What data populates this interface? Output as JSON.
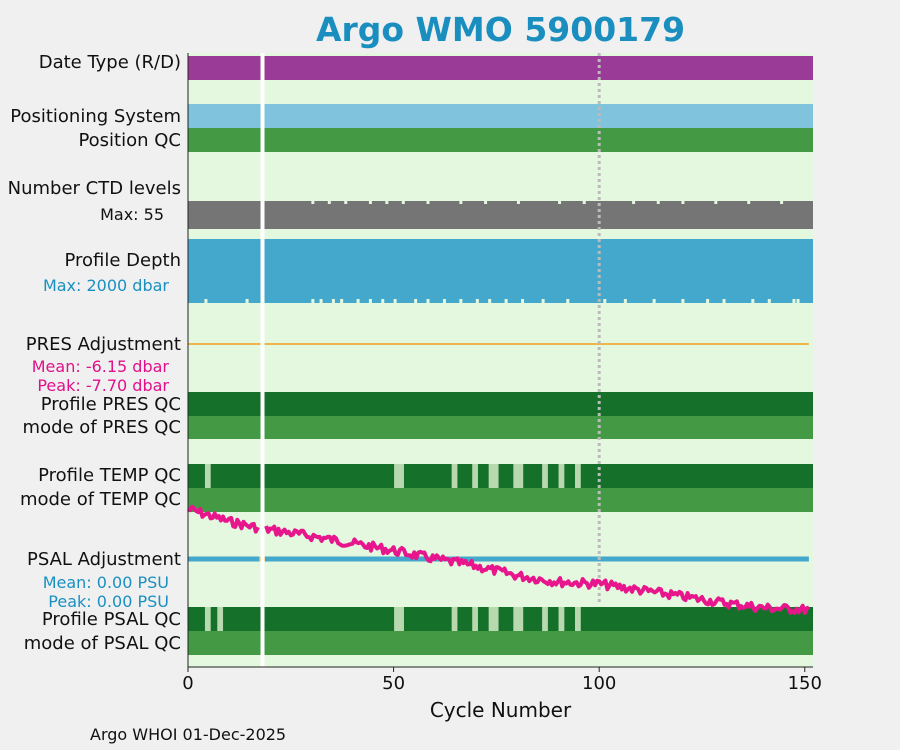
{
  "chart_data": {
    "type": "status-timeline",
    "title": "Argo WMO 5900179",
    "xlabel": "Cycle Number",
    "xlim": [
      0,
      152
    ],
    "xticks": [
      0,
      50,
      100,
      150
    ],
    "gap_cycle": 18,
    "reference_line_cycle": 100,
    "rows": {
      "date_type": {
        "label": "Date Type (R/D)",
        "color": "#9a3b97"
      },
      "positioning_system": {
        "label": "Positioning System",
        "color": "#7fc3dd"
      },
      "position_qc": {
        "label": "Position QC",
        "color": "#449a44"
      },
      "ctd_levels": {
        "label": "Number CTD levels",
        "max_label": "Max: 55",
        "max": 55,
        "color": "#757575",
        "dip_cycles": [
          30,
          34,
          38,
          44,
          48,
          52,
          58,
          66,
          72,
          80,
          90,
          96,
          108,
          114,
          120,
          128,
          136,
          144
        ]
      },
      "profile_depth": {
        "label": "Profile Depth",
        "max_label": "Max: 2000 dbar",
        "max": 2000,
        "color": "#43a8cc",
        "dip_cycles": [
          4,
          14,
          30,
          32,
          35,
          37,
          41,
          44,
          47,
          50,
          55,
          58,
          62,
          66,
          70,
          73,
          77,
          81,
          86,
          92,
          101,
          106,
          113,
          120,
          126,
          130,
          137,
          141,
          147,
          148
        ]
      },
      "pres_adjustment": {
        "label": "PRES Adjustment",
        "mean_label": "Mean: -6.15 dbar",
        "peak_label": "Peak: -7.70 dbar",
        "mean": -6.15,
        "peak": -7.7,
        "color": "#f0b54a"
      },
      "profile_pres_qc": {
        "label": "Profile PRES QC",
        "color": "#15712a"
      },
      "mode_pres_qc": {
        "label": "mode of PRES QC",
        "color": "#449a44"
      },
      "profile_temp_qc": {
        "label": "Profile TEMP QC",
        "color": "#15712a",
        "alt_color": "#b8d8b0",
        "alt_cycles": [
          4,
          50,
          51,
          64,
          69,
          73,
          74,
          79,
          80,
          86,
          90,
          94
        ]
      },
      "mode_temp_qc": {
        "label": "mode of TEMP QC",
        "color": "#449a44"
      },
      "psal_adjustment": {
        "label": "PSAL Adjustment",
        "mean_label": "Mean: 0.00 PSU",
        "peak_label": "Peak: 0.00 PSU",
        "mean": 0.0,
        "peak": 0.0,
        "color": "#43a8cc",
        "marker_color": "#f0b54a",
        "marker_cycle": 18
      },
      "profile_psal_qc": {
        "label": "Profile PSAL QC",
        "color": "#15712a",
        "alt_color": "#b8d8b0",
        "alt_cycles": [
          4,
          7,
          50,
          51,
          64,
          69,
          73,
          74,
          79,
          80,
          86,
          90,
          94
        ]
      },
      "mode_psal_qc": {
        "label": "mode of PSAL QC",
        "color": "#449a44"
      }
    },
    "overlay_trace": {
      "color": "#e8168c",
      "description": "decreasing trend line",
      "keypoints": [
        [
          0,
          0.0
        ],
        [
          10,
          0.12
        ],
        [
          17,
          0.18
        ],
        [
          20,
          0.2
        ],
        [
          30,
          0.26
        ],
        [
          40,
          0.33
        ],
        [
          50,
          0.4
        ],
        [
          60,
          0.48
        ],
        [
          70,
          0.55
        ],
        [
          80,
          0.64
        ],
        [
          90,
          0.7
        ],
        [
          100,
          0.72
        ],
        [
          110,
          0.78
        ],
        [
          120,
          0.84
        ],
        [
          130,
          0.9
        ],
        [
          140,
          0.95
        ],
        [
          152,
          0.97
        ]
      ]
    }
  },
  "footer": "Argo WHOI 01-Dec-2025"
}
